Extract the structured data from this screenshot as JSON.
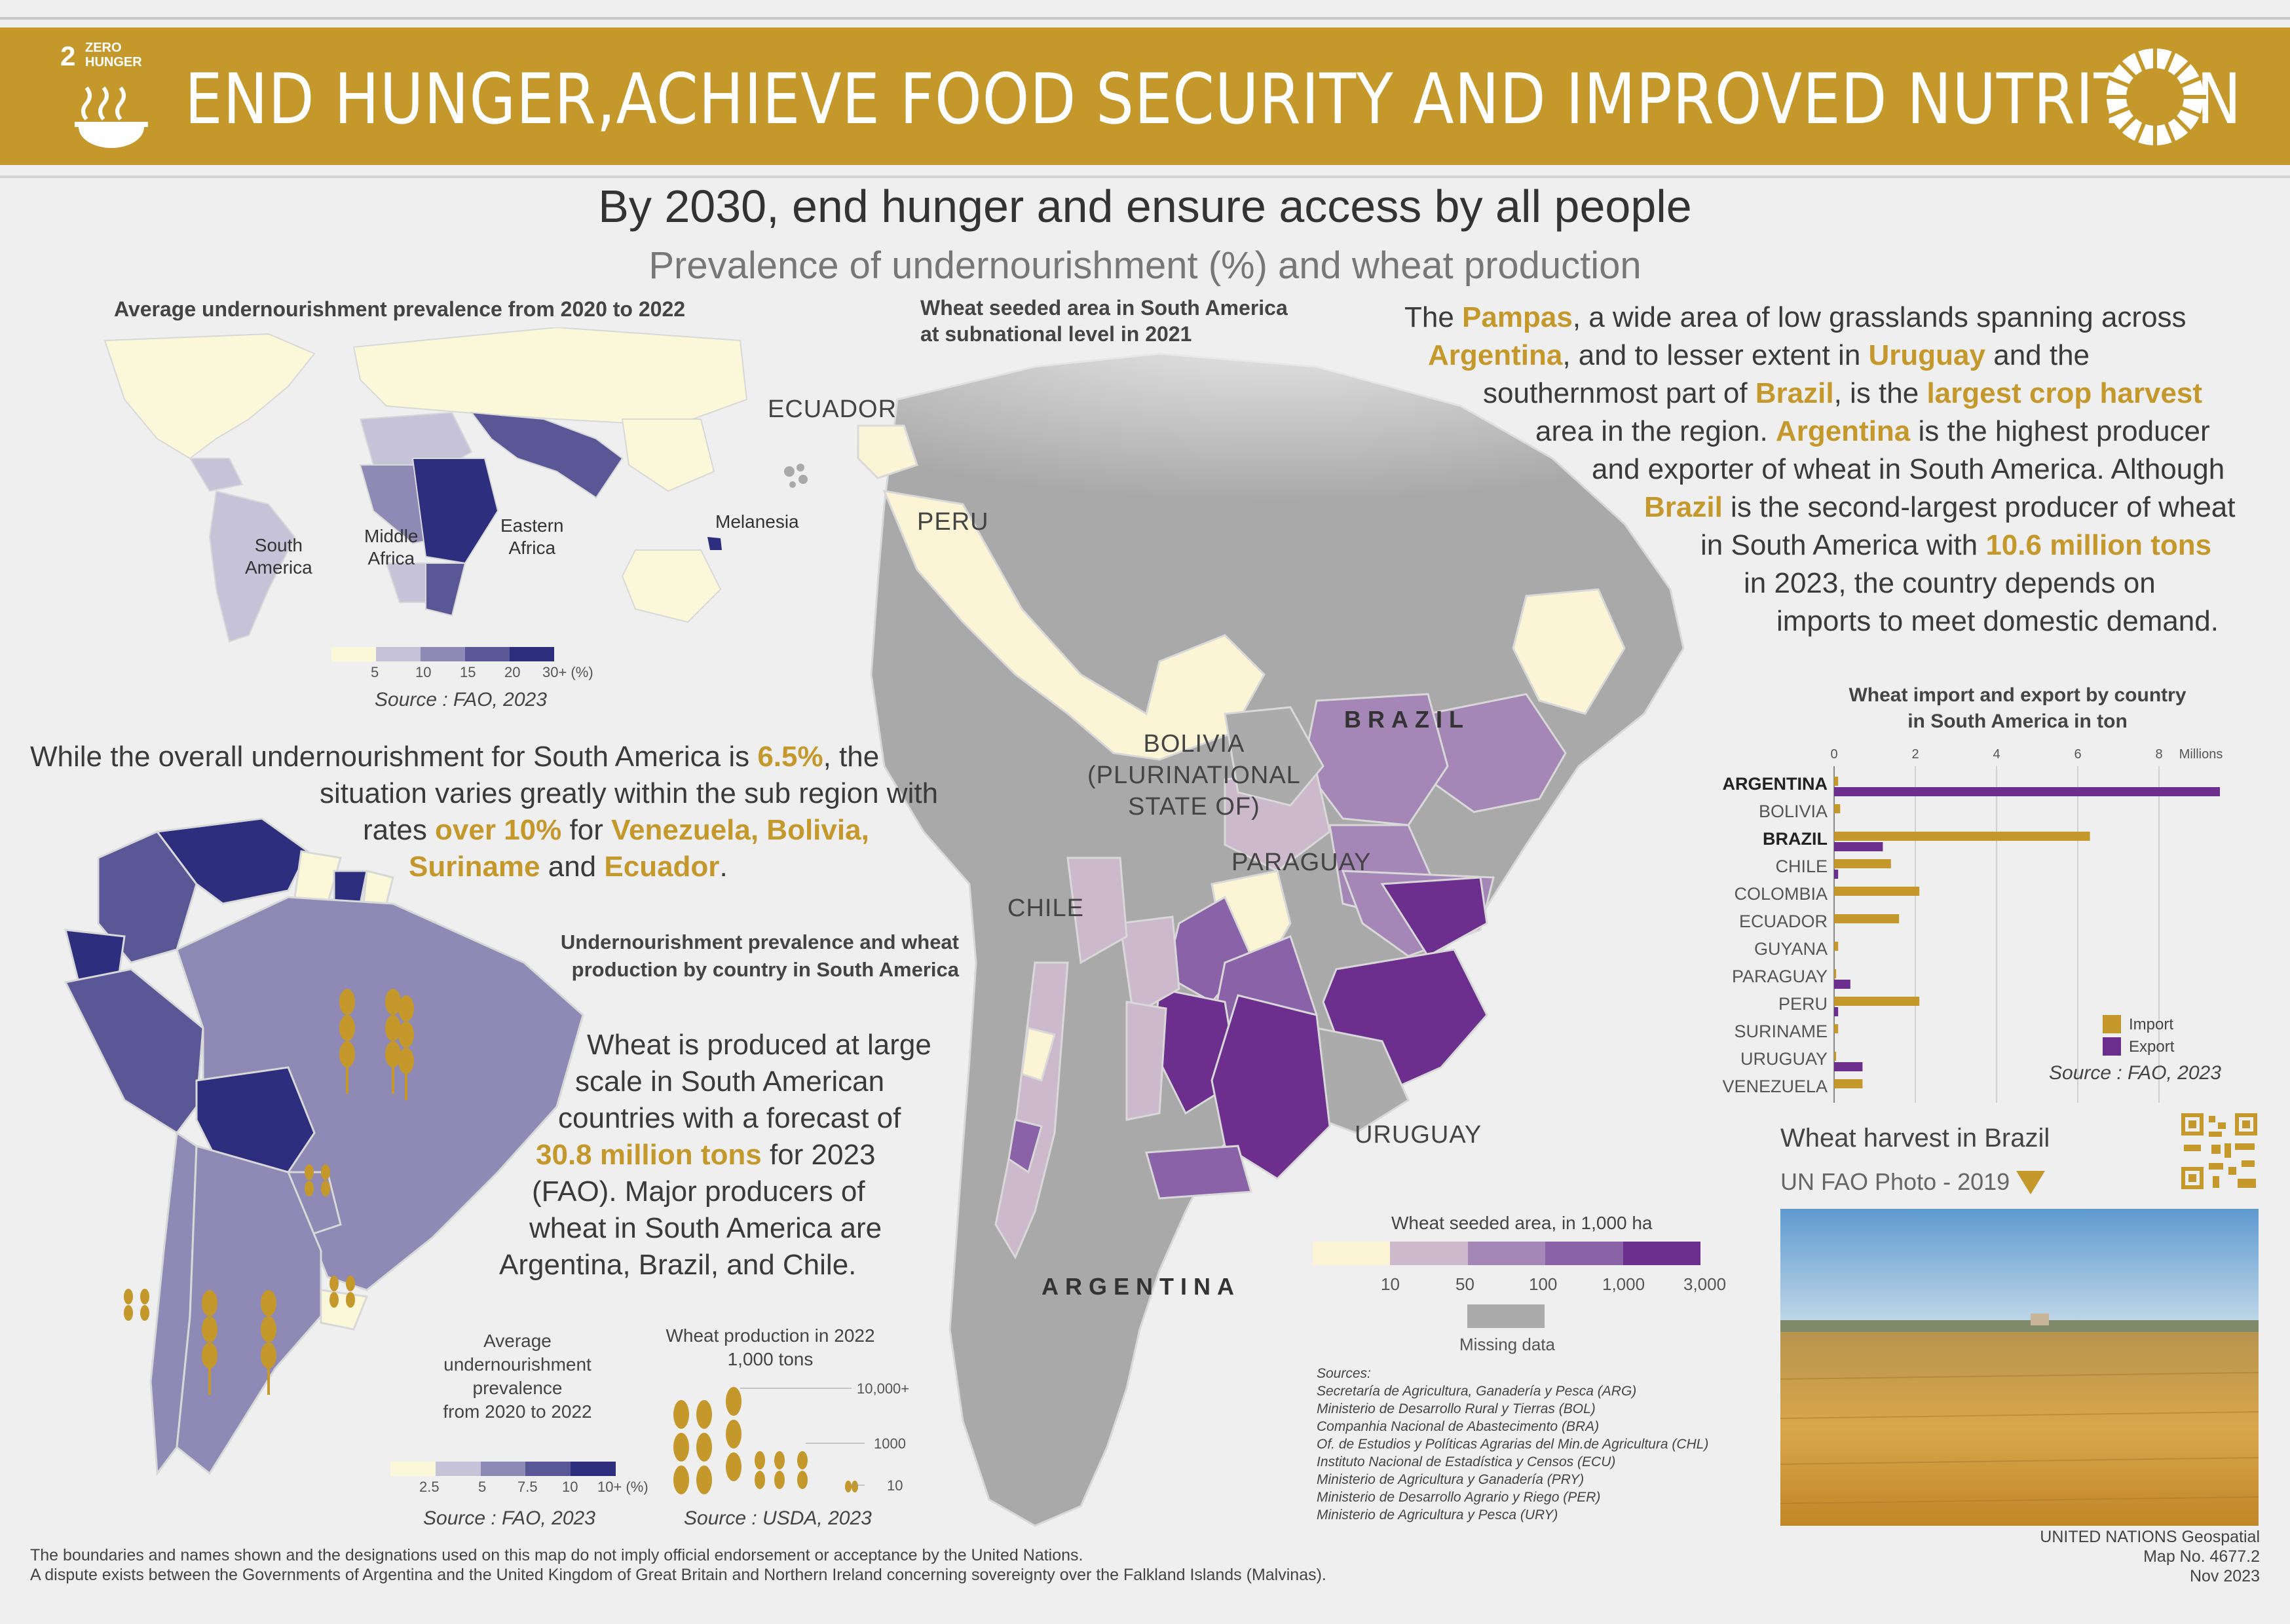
{
  "header": {
    "goal_number": "2",
    "goal_name": "ZERO\nHUNGER",
    "title": "END HUNGER,ACHIEVE FOOD SECURITY AND IMPROVED NUTRITION"
  },
  "headline": "By 2030, end hunger and ensure access by all people",
  "subheadline": "Prevalence of undernourishment (%) and wheat production",
  "world_map": {
    "title": "Average undernourishment prevalence from 2020 to 2022",
    "labels": [
      "South\nAmerica",
      "Middle\nAfrica",
      "Eastern\nAfrica",
      "Melanesia"
    ],
    "legend_ticks": [
      "5",
      "10",
      "15",
      "20",
      "30+ (%)"
    ],
    "legend_colors": [
      "#fbf7d9",
      "#c6c3d8",
      "#8f8ab5",
      "#5a5797",
      "#2d2f7e"
    ],
    "source": "Source : FAO, 2023"
  },
  "paragraph_1": {
    "line1_a": "While the overall undernourishment for South America is ",
    "line1_hl": "6.5%",
    "line1_b": ", the",
    "line2": "situation varies greatly within the sub region with",
    "line3_a": "rates ",
    "line3_hl1": "over 10%",
    "line3_b": " for ",
    "line3_hl2": "Venezuela, Bolivia,",
    "line4_hl1": "Suriname",
    "line4_b": " and ",
    "line4_hl2": "Ecuador",
    "line4_c": "."
  },
  "sa_map": {
    "title_line1": "Undernourishment prevalence and wheat",
    "title_line2": "production by country in South America",
    "legend_title": "Average\nundernourishment\nprevalence\nfrom 2020 to 2022",
    "legend_ticks": [
      "2.5",
      "5",
      "7.5",
      "10",
      "10+ (%)"
    ],
    "legend_colors": [
      "#fbf7d9",
      "#c6c3d8",
      "#8f8ab5",
      "#5a5797",
      "#2d2f7e"
    ],
    "legend_source": "Source : FAO, 2023",
    "wheat_legend_title": "Wheat production in 2022\n1,000 tons",
    "wheat_ticks": [
      "10,000+",
      "1000",
      "10"
    ],
    "wheat_source": "Source : USDA, 2023"
  },
  "paragraph_2": {
    "l1": "Wheat is produced at large",
    "l2": "scale in South American",
    "l3": "countries with a forecast of",
    "l4_hl": "30.8 million tons",
    "l4_b": " for 2023",
    "l5": "(FAO). Major producers of",
    "l6": "wheat in South America are",
    "l7": "Argentina, Brazil, and Chile."
  },
  "main_map": {
    "title_line1": "Wheat seeded area in South America",
    "title_line2": "at subnational level in 2021",
    "labels": {
      "ecuador": "ECUADOR",
      "peru": "PERU",
      "bolivia": "BOLIVIA\n(PLURINATIONAL\nSTATE OF)",
      "paraguay": "PARAGUAY",
      "chile": "CHILE",
      "uruguay": "URUGUAY",
      "brazil": "BRAZIL",
      "argentina": "ARGENTINA"
    },
    "legend_title": "Wheat seeded area, in 1,000 ha",
    "legend_ticks": [
      "10",
      "50",
      "100",
      "1,000",
      "3,000"
    ],
    "legend_colors": [
      "#fbf5d6",
      "#cdb9cc",
      "#a487b6",
      "#8a62a8",
      "#6c2f8e"
    ],
    "missing_label": "Missing data",
    "missing_color": "#ababab",
    "sources_title": "Sources:",
    "sources": [
      "Secretaría de Agricultura, Ganadería y Pesca (ARG)",
      "Ministerio de Desarrollo Rural y Tierras (BOL)",
      "Companhia Nacional de Abastecimento (BRA)",
      "Of. de Estudios y Políticas Agrarias del Min.de Agricultura (CHL)",
      "Instituto Nacional de Estadística y Censos (ECU)",
      "Ministerio de Agricultura y Ganadería (PRY)",
      "Ministerio de Desarrollo Agrario y Riego (PER)",
      "Ministerio de Agricultura y Pesca (URY)"
    ]
  },
  "paragraph_3": {
    "l1_a": "The ",
    "l1_hl": "Pampas",
    "l1_b": ", a wide area of low grasslands spanning across",
    "l2_hl1": "Argentina",
    "l2_b": ", and to lesser extent in ",
    "l2_hl2": "Uruguay",
    "l2_c": " and the",
    "l3_a": "southernmost part of ",
    "l3_hl1": "Brazil",
    "l3_b": ", is the ",
    "l3_hl2": "largest crop harvest",
    "l4_a": "area in the region. ",
    "l4_hl": "Argentina",
    "l4_b": " is the highest producer",
    "l5": "and exporter of wheat in South America. Although",
    "l6_hl": "Brazil",
    "l6_b": " is the second-largest producer of wheat",
    "l7_a": "in South America with ",
    "l7_hl": "10.6 million tons",
    "l8": "in 2023, the country depends on",
    "l9": "imports to meet domestic demand."
  },
  "chart_data": {
    "type": "bar",
    "title": "Wheat import and export by country\nin South America in ton",
    "axis_unit": "Millions",
    "xlim": [
      0,
      9
    ],
    "x_ticks": [
      0,
      2,
      4,
      6,
      8
    ],
    "categories": [
      "ARGENTINA",
      "BOLIVIA",
      "BRAZIL",
      "CHILE",
      "COLOMBIA",
      "ECUADOR",
      "GUYANA",
      "PARAGUAY",
      "PERU",
      "SURINAME",
      "URUGUAY",
      "VENEZUELA"
    ],
    "bold_categories": [
      "ARGENTINA",
      "BRAZIL"
    ],
    "series": [
      {
        "name": "Import",
        "color": "#c5982c",
        "values": [
          0.1,
          0.15,
          6.3,
          1.4,
          2.1,
          1.6,
          0.1,
          0.05,
          2.1,
          0.1,
          0.05,
          0.7
        ]
      },
      {
        "name": "Export",
        "color": "#6c2f8e",
        "values": [
          9.5,
          0,
          1.2,
          0.1,
          0,
          0,
          0,
          0.4,
          0.1,
          0,
          0.7,
          0
        ]
      }
    ],
    "source": "Source : FAO, 2023"
  },
  "photo": {
    "title": "Wheat harvest in Brazil",
    "credit": "UN FAO Photo - 2019"
  },
  "footer": {
    "disclaimer_1": "The boundaries and names shown and the designations used on this map do not imply official endorsement or acceptance by the United Nations.",
    "disclaimer_2": "A dispute exists between the Governments of Argentina and the United Kingdom of Great Britain and Northern Ireland concerning sovereignty over the Falkland Islands (Malvinas).",
    "org": "UNITED NATIONS Geospatial",
    "map_no": "Map No. 4677.2",
    "date": "Nov 2023"
  }
}
